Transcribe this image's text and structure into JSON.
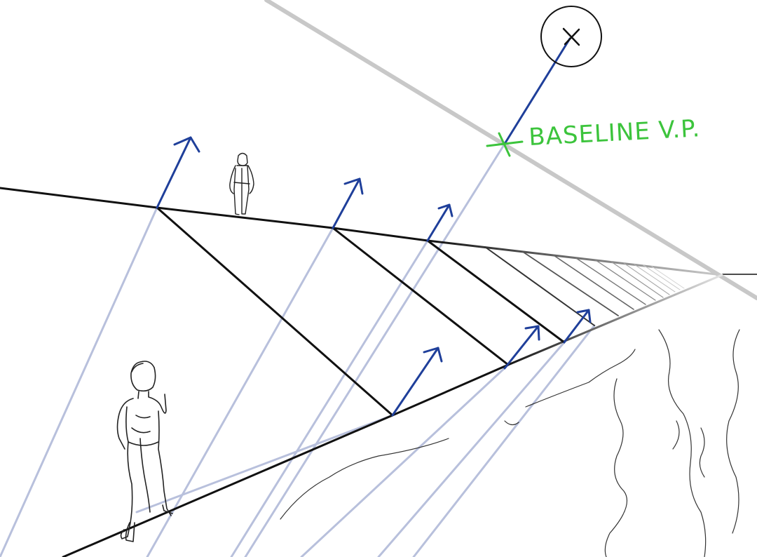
{
  "label": {
    "text": "BASELINE V.P."
  },
  "colors": {
    "background": "#ffffff",
    "ink": "#111111",
    "guide": "#b8c0dc",
    "horizon": "#c8c8c8",
    "arrow": "#1f3f9a",
    "label": "#3cc43c"
  },
  "icons": {
    "vanishing_point": "circled-x-icon",
    "baseline_vp": "green-cross-icon"
  }
}
